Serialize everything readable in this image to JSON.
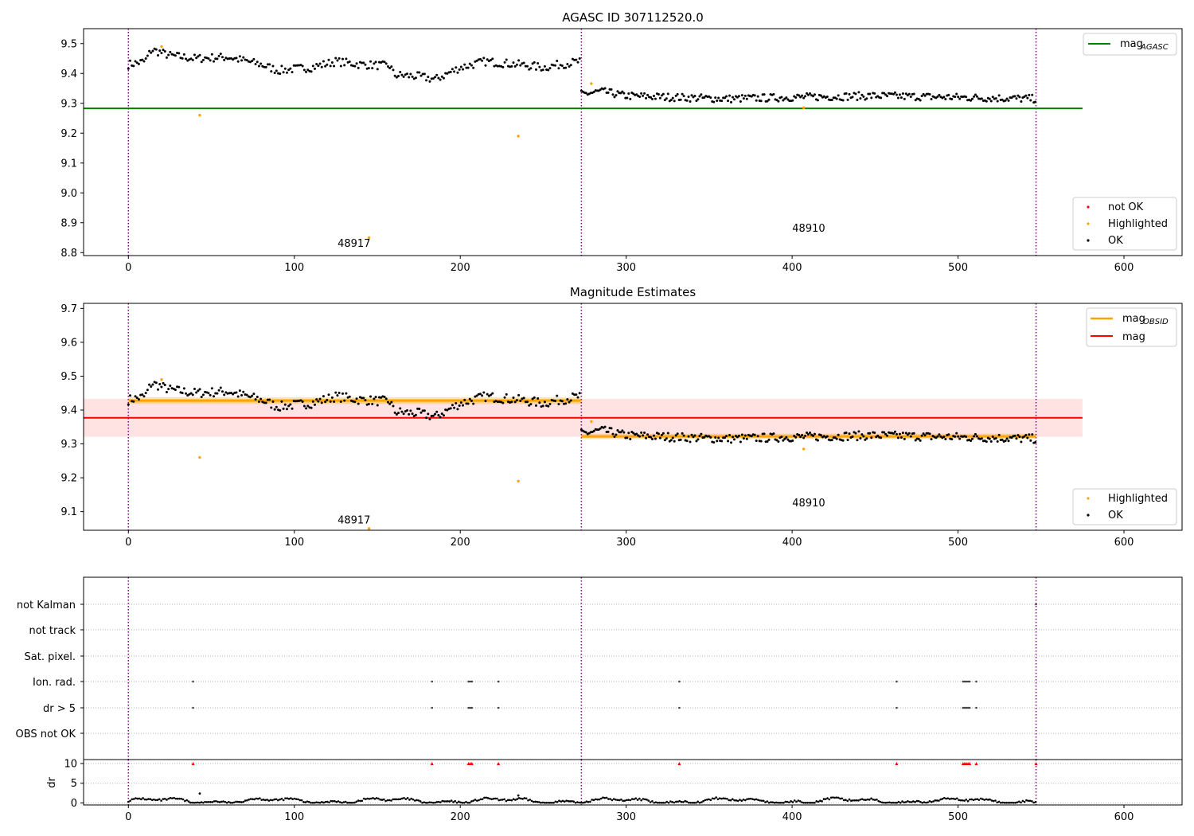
{
  "figure": {
    "colors": {
      "ok": "#000000",
      "highlighted": "#ffa500",
      "not_ok": "#ff0000",
      "agasc_line": "#008000",
      "obsid_line": "#ffa500",
      "mag_line": "#ff0000",
      "mag_band": "#ffc0c0",
      "obs_boundary": "#800080"
    }
  },
  "chart_data": [
    {
      "name": "agasc-panel",
      "type": "scatter",
      "title": "AGASC ID 307112520.0",
      "xlim": [
        -27,
        635
      ],
      "ylim": [
        8.79,
        9.55
      ],
      "xticks": [
        0,
        100,
        200,
        300,
        400,
        500,
        600
      ],
      "yticks": [
        8.8,
        8.9,
        9.0,
        9.1,
        9.2,
        9.3,
        9.4,
        9.5
      ],
      "ytick_labels": [
        "8.8",
        "8.9",
        "9.0",
        "9.1",
        "9.2",
        "9.3",
        "9.4",
        "9.5"
      ],
      "obs_boundaries": [
        0,
        273,
        547
      ],
      "obsid_labels": [
        {
          "text": "48917",
          "x": 136,
          "y": 8.82
        },
        {
          "text": "48910",
          "x": 410,
          "y": 8.87
        }
      ],
      "mag_agasc": 9.283,
      "mag_agasc_range": [
        -27,
        575
      ],
      "highlighted": [
        [
          20,
          9.49
        ],
        [
          43,
          9.26
        ],
        [
          145,
          8.85
        ],
        [
          235,
          9.19
        ],
        [
          279,
          9.366
        ],
        [
          407,
          9.285
        ]
      ],
      "ok_series": {
        "obs1_segments": [
          [
            0,
            9.43
          ],
          [
            10,
            9.44
          ],
          [
            14,
            9.48
          ],
          [
            25,
            9.46
          ],
          [
            40,
            9.45
          ],
          [
            60,
            9.455
          ],
          [
            80,
            9.43
          ],
          [
            90,
            9.41
          ],
          [
            110,
            9.42
          ],
          [
            125,
            9.44
          ],
          [
            140,
            9.43
          ],
          [
            158,
            9.425
          ],
          [
            160,
            9.395
          ],
          [
            175,
            9.39
          ],
          [
            185,
            9.38
          ],
          [
            200,
            9.42
          ],
          [
            215,
            9.44
          ],
          [
            235,
            9.43
          ],
          [
            250,
            9.42
          ],
          [
            260,
            9.43
          ],
          [
            272,
            9.44
          ]
        ],
        "obs2_segments": [
          [
            273,
            9.33
          ],
          [
            285,
            9.34
          ],
          [
            300,
            9.325
          ],
          [
            330,
            9.32
          ],
          [
            360,
            9.315
          ],
          [
            400,
            9.32
          ],
          [
            450,
            9.325
          ],
          [
            500,
            9.32
          ],
          [
            547,
            9.315
          ]
        ]
      },
      "legend_top": [
        {
          "label": "mag",
          "sub": "AGASC",
          "color": "#008000"
        }
      ],
      "legend_bottom": [
        {
          "label": "not OK",
          "color": "#ff0000"
        },
        {
          "label": "Highlighted",
          "color": "#ffa500"
        },
        {
          "label": "OK",
          "color": "#000000"
        }
      ]
    },
    {
      "name": "estimates-panel",
      "type": "scatter",
      "title": "Magnitude Estimates",
      "xlim": [
        -27,
        635
      ],
      "ylim": [
        9.045,
        9.715
      ],
      "xticks": [
        0,
        100,
        200,
        300,
        400,
        500,
        600
      ],
      "yticks": [
        9.1,
        9.2,
        9.3,
        9.4,
        9.5,
        9.6,
        9.7
      ],
      "ytick_labels": [
        "9.1",
        "9.2",
        "9.3",
        "9.4",
        "9.5",
        "9.6",
        "9.7"
      ],
      "obs_boundaries": [
        0,
        273,
        547
      ],
      "obsid_labels": [
        {
          "text": "48917",
          "x": 136,
          "y": 9.065
        },
        {
          "text": "48910",
          "x": 410,
          "y": 9.115
        }
      ],
      "mag": 9.377,
      "mag_band": [
        9.321,
        9.433
      ],
      "mag_range": [
        -27,
        575
      ],
      "mag_obsid": [
        {
          "x": [
            0,
            273
          ],
          "y": 9.428,
          "band": [
            9.418,
            9.438
          ]
        },
        {
          "x": [
            273,
            547
          ],
          "y": 9.322,
          "band": [
            9.314,
            9.33
          ]
        }
      ],
      "highlighted": [
        [
          20,
          9.49
        ],
        [
          43,
          9.26
        ],
        [
          145,
          9.05
        ],
        [
          235,
          9.19
        ],
        [
          279,
          9.366
        ],
        [
          407,
          9.285
        ]
      ],
      "legend_top": [
        {
          "label": "mag",
          "sub": "OBSID",
          "color": "#ffa500"
        },
        {
          "label": "mag",
          "sub": "",
          "color": "#ff0000"
        }
      ],
      "legend_bottom": [
        {
          "label": "Highlighted",
          "color": "#ffa500"
        },
        {
          "label": "OK",
          "color": "#000000"
        }
      ]
    },
    {
      "name": "flags-panel",
      "type": "scatter",
      "xlim": [
        -27,
        635
      ],
      "categories": [
        "not Kalman",
        "not track",
        "Sat. pixel.",
        "Ion. rad.",
        "dr > 5",
        "OBS not OK"
      ],
      "obs_boundaries": [
        0,
        273,
        547
      ],
      "flag_points": {
        "not Kalman": [
          547
        ],
        "not track": [],
        "Sat. pixel.": [],
        "Ion. rad.": [
          39,
          183,
          205,
          206,
          207,
          223,
          332,
          463,
          503,
          504,
          505,
          506,
          507,
          511
        ],
        "dr > 5": [
          39,
          183,
          205,
          206,
          207,
          223,
          332,
          463,
          503,
          504,
          505,
          506,
          507,
          511
        ],
        "OBS not OK": []
      }
    },
    {
      "name": "dr-panel",
      "type": "scatter",
      "xlabel": "",
      "ylabel": "dr",
      "xlim": [
        -27,
        635
      ],
      "ylim": [
        -0.5,
        11
      ],
      "xticks": [
        0,
        100,
        200,
        300,
        400,
        500,
        600
      ],
      "yticks": [
        0,
        5,
        10
      ],
      "ytick_labels": [
        "0",
        "5",
        "10"
      ],
      "obs_boundaries": [
        0,
        273,
        547
      ],
      "clipped_markers_x": [
        39,
        183,
        205,
        206,
        207,
        223,
        332,
        463,
        503,
        504,
        505,
        506,
        507,
        511,
        547
      ],
      "clipped_value": 10,
      "outliers": [
        [
          43,
          2.4
        ],
        [
          235,
          1.9
        ]
      ]
    }
  ]
}
